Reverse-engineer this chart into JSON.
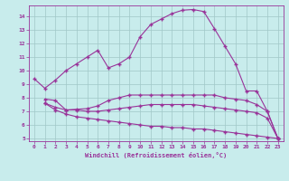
{
  "xlabel": "Windchill (Refroidissement éolien,°C)",
  "ylabel": "",
  "bg_color": "#c8ecec",
  "grid_color": "#a0c8c8",
  "line_color": "#993399",
  "marker": "+",
  "xlim": [
    -0.5,
    23.5
  ],
  "ylim": [
    4.8,
    14.8
  ],
  "yticks": [
    5,
    6,
    7,
    8,
    9,
    10,
    11,
    12,
    13,
    14
  ],
  "xticks": [
    0,
    1,
    2,
    3,
    4,
    5,
    6,
    7,
    8,
    9,
    10,
    11,
    12,
    13,
    14,
    15,
    16,
    17,
    18,
    19,
    20,
    21,
    22,
    23
  ],
  "line1_x": [
    0,
    1,
    2,
    3,
    4,
    5,
    6,
    7,
    8,
    9,
    10,
    11,
    12,
    13,
    14,
    15,
    16,
    17,
    18,
    19,
    20,
    21,
    22,
    23
  ],
  "line1_y": [
    9.4,
    8.7,
    9.3,
    10.0,
    10.5,
    11.0,
    11.5,
    10.2,
    10.5,
    11.0,
    12.5,
    13.4,
    13.8,
    14.2,
    14.45,
    14.5,
    14.35,
    13.1,
    11.8,
    10.5,
    8.5,
    8.5,
    7.0,
    5.0
  ],
  "line2_x": [
    1,
    2,
    3,
    4,
    5,
    6,
    7,
    8,
    9,
    10,
    11,
    12,
    13,
    14,
    15,
    16,
    17,
    18,
    19,
    20,
    21,
    22,
    23
  ],
  "line2_y": [
    7.9,
    7.8,
    7.1,
    7.15,
    7.2,
    7.4,
    7.8,
    8.0,
    8.2,
    8.2,
    8.2,
    8.2,
    8.2,
    8.2,
    8.2,
    8.2,
    8.2,
    8.0,
    7.9,
    7.8,
    7.5,
    7.0,
    5.0
  ],
  "line3_x": [
    1,
    2,
    3,
    4,
    5,
    6,
    7,
    8,
    9,
    10,
    11,
    12,
    13,
    14,
    15,
    16,
    17,
    18,
    19,
    20,
    21,
    22,
    23
  ],
  "line3_y": [
    7.6,
    7.3,
    7.1,
    7.1,
    7.0,
    7.0,
    7.1,
    7.2,
    7.3,
    7.4,
    7.5,
    7.5,
    7.5,
    7.5,
    7.5,
    7.4,
    7.3,
    7.2,
    7.1,
    7.0,
    6.9,
    6.5,
    5.0
  ],
  "line4_x": [
    1,
    2,
    3,
    4,
    5,
    6,
    7,
    8,
    9,
    10,
    11,
    12,
    13,
    14,
    15,
    16,
    17,
    18,
    19,
    20,
    21,
    22,
    23
  ],
  "line4_y": [
    7.6,
    7.1,
    6.8,
    6.6,
    6.5,
    6.4,
    6.3,
    6.2,
    6.1,
    6.0,
    5.9,
    5.9,
    5.8,
    5.8,
    5.7,
    5.7,
    5.6,
    5.5,
    5.4,
    5.3,
    5.2,
    5.1,
    5.0
  ]
}
